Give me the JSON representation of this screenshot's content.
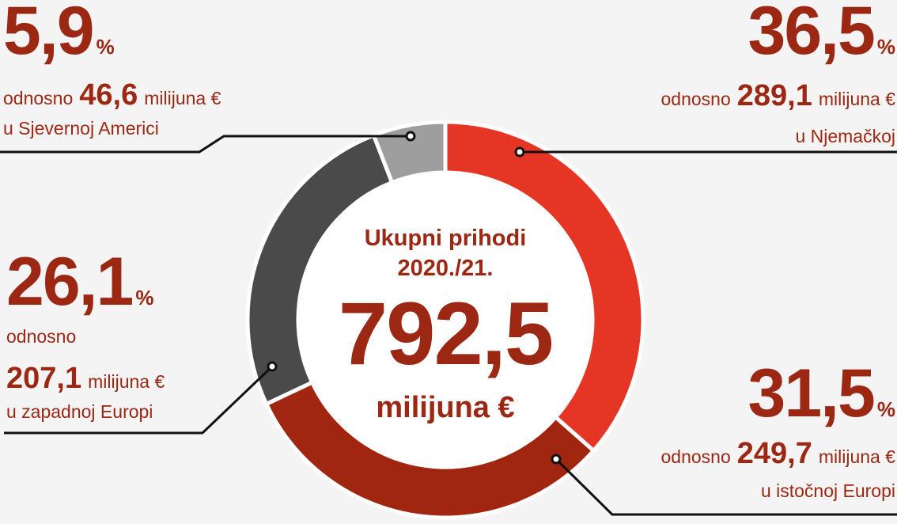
{
  "chart_data": {
    "type": "donut",
    "title": "Ukupni prihodi",
    "subtitle": "2020./21.",
    "total": 792.5,
    "total_label": "792,5",
    "categories": [
      "u Njemačkoj",
      "u istočnoj Europi",
      "u zapadnoj Europi",
      "u Sjevernoj Americi"
    ],
    "values": [
      36.5,
      31.5,
      26.1,
      5.9
    ],
    "value_labels": [
      "36,5",
      "31,5",
      "26,1",
      "5,9"
    ],
    "value_suffix": "%",
    "amounts": [
      289.1,
      249.7,
      207.1,
      46.6
    ],
    "amount_labels": [
      "289,1",
      "249,7",
      "207,1",
      "46,6"
    ],
    "connector": "odnosno",
    "amount_unit": "milijuna €",
    "colors": [
      "#e53524",
      "#a0260f",
      "#4a4a4a",
      "#9e9e9e"
    ]
  }
}
